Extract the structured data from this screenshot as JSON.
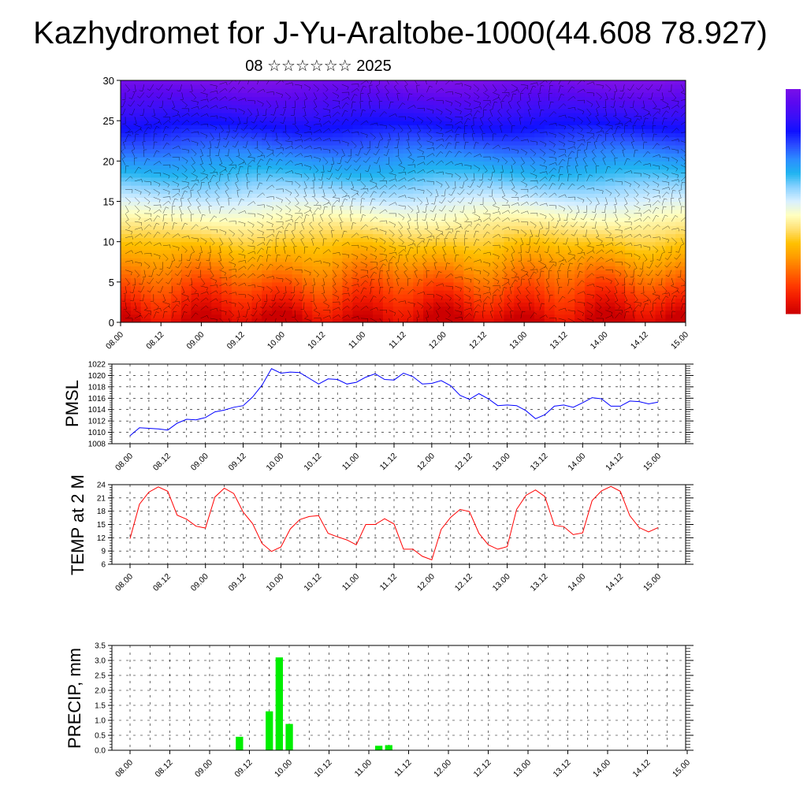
{
  "title": "Kazhydromet for J-Yu-Araltobe-1000(44.608 78.927)",
  "subtitle": "08 ☆☆☆☆☆☆ 2025",
  "time_labels": [
    "08.00",
    "08.12",
    "09.00",
    "09.12",
    "10.00",
    "10.12",
    "11.00",
    "11.12",
    "12.00",
    "12.12",
    "13.00",
    "13.12",
    "14.00",
    "14.12",
    "15.00"
  ],
  "colors": {
    "pmsl_line": "#0000ff",
    "temp_line": "#ff0000",
    "precip_bar": "#00ee00",
    "wind_barb": "#000000"
  },
  "chart_data": [
    {
      "type": "heatmap",
      "name": "vertical-section",
      "ylim": [
        0,
        30
      ],
      "y_ticks": [
        0,
        5,
        10,
        15,
        20,
        25,
        30
      ],
      "xlim": [
        0,
        168
      ],
      "colorbar": [
        "#7a10e8",
        "#5a08f0",
        "#3a10f8",
        "#1010ff",
        "#2a4cff",
        "#2c8cff",
        "#20b4f0",
        "#8ad2ff",
        "#d8f0ff",
        "#ffffc0",
        "#ffe070",
        "#ffc000",
        "#ff9a00",
        "#ff6a00",
        "#ff3a00",
        "#ee1600",
        "#cc0000"
      ],
      "note": ""
    },
    {
      "type": "line",
      "name": "pmsl",
      "ylabel": "PMSL",
      "ylim": [
        1008,
        1022
      ],
      "y_ticks": [
        1008,
        1010,
        1012,
        1014,
        1016,
        1018,
        1020,
        1022
      ],
      "x": [
        0,
        3,
        6,
        9,
        12,
        15,
        18,
        21,
        24,
        27,
        30,
        33,
        36,
        39,
        42,
        45,
        48,
        51,
        54,
        57,
        60,
        63,
        66,
        69,
        72,
        75,
        78,
        81,
        84,
        87,
        90,
        93,
        96,
        99,
        102,
        105,
        108,
        111,
        114,
        117,
        120,
        123,
        126,
        129,
        132,
        135,
        138,
        141,
        144,
        147,
        150,
        153,
        156,
        159,
        162,
        165,
        168
      ],
      "values": [
        1009.4,
        1010.8,
        1010.7,
        1010.6,
        1010.4,
        1011.6,
        1012.3,
        1012.2,
        1012.6,
        1013.6,
        1013.9,
        1014.4,
        1014.7,
        1016.2,
        1018.3,
        1021.2,
        1020.4,
        1020.6,
        1020.5,
        1019.5,
        1018.5,
        1019.4,
        1019.3,
        1018.5,
        1018.8,
        1019.7,
        1020.3,
        1019.3,
        1019.2,
        1020.4,
        1019.8,
        1018.5,
        1018.6,
        1019.1,
        1018.2,
        1016.5,
        1015.8,
        1016.8,
        1015.9,
        1014.7,
        1014.8,
        1014.7,
        1013.8,
        1012.4,
        1013.1,
        1014.6,
        1014.8,
        1014.4,
        1015.2,
        1016.1,
        1015.9,
        1014.6,
        1014.6,
        1015.5,
        1015.4,
        1015.0,
        1015.3
      ]
    },
    {
      "type": "line",
      "name": "temp-2m",
      "ylabel": "TEMP at 2 M",
      "ylim": [
        6,
        24
      ],
      "y_ticks": [
        6,
        9,
        12,
        15,
        18,
        21,
        24
      ],
      "x": [
        0,
        3,
        6,
        9,
        12,
        15,
        18,
        21,
        24,
        27,
        30,
        33,
        36,
        39,
        42,
        45,
        48,
        51,
        54,
        57,
        60,
        63,
        66,
        69,
        72,
        75,
        78,
        81,
        84,
        87,
        90,
        93,
        96,
        99,
        102,
        105,
        108,
        111,
        114,
        117,
        120,
        123,
        126,
        129,
        132,
        135,
        138,
        141,
        144,
        147,
        150,
        153,
        156,
        159,
        162,
        165,
        168
      ],
      "values": [
        11.8,
        19.6,
        22.3,
        23.5,
        22.5,
        17.1,
        16.2,
        14.6,
        14.2,
        21.2,
        23.2,
        22.0,
        17.8,
        15.2,
        10.7,
        8.9,
        9.9,
        14.0,
        16.1,
        16.8,
        17.0,
        13.0,
        12.2,
        11.5,
        10.4,
        15.0,
        15.0,
        16.3,
        15.1,
        9.4,
        9.4,
        7.8,
        7.0,
        13.9,
        16.6,
        18.4,
        17.9,
        13.0,
        10.4,
        9.4,
        10.0,
        18.4,
        21.6,
        22.8,
        21.3,
        14.8,
        14.5,
        12.7,
        13.1,
        20.4,
        22.6,
        23.6,
        22.5,
        17.0,
        14.3,
        13.3,
        14.3
      ]
    },
    {
      "type": "bar",
      "name": "precip",
      "ylabel": "PRECIP, mm",
      "ylim": [
        0,
        3.5
      ],
      "y_ticks": [
        "0.0",
        "0.5",
        "1.0",
        "1.5",
        "2.0",
        "2.5",
        "3.0",
        "3.5"
      ],
      "bar_width_hours": 3,
      "bars": [
        {
          "x": 33,
          "value": 0.45
        },
        {
          "x": 42,
          "value": 1.3
        },
        {
          "x": 45,
          "value": 3.1
        },
        {
          "x": 48,
          "value": 0.88
        },
        {
          "x": 75,
          "value": 0.15
        },
        {
          "x": 78,
          "value": 0.17
        }
      ]
    }
  ]
}
